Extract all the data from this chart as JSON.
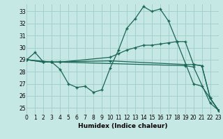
{
  "xlabel": "Humidex (Indice chaleur)",
  "xlim": [
    0,
    23
  ],
  "ylim": [
    24.5,
    33.6
  ],
  "yticks": [
    25,
    26,
    27,
    28,
    29,
    30,
    31,
    32,
    33
  ],
  "xticks": [
    0,
    1,
    2,
    3,
    4,
    5,
    6,
    7,
    8,
    9,
    10,
    11,
    12,
    13,
    14,
    15,
    16,
    17,
    18,
    19,
    20,
    21,
    22,
    23
  ],
  "bg_color": "#c5e8e5",
  "grid_color": "#a0ccca",
  "line_color": "#1a6655",
  "lines": [
    {
      "x": [
        0,
        1,
        2,
        3,
        4,
        5,
        6,
        7,
        8,
        9,
        10,
        11,
        12,
        13,
        14,
        15,
        16,
        17,
        18,
        20,
        21,
        22,
        23
      ],
      "y": [
        29.0,
        29.6,
        28.8,
        28.8,
        28.2,
        27.0,
        26.7,
        26.8,
        26.3,
        26.5,
        28.3,
        29.8,
        31.6,
        32.4,
        33.4,
        33.0,
        33.2,
        32.2,
        30.5,
        27.0,
        26.8,
        25.8,
        24.8
      ]
    },
    {
      "x": [
        0,
        2,
        3,
        4,
        10,
        11,
        12,
        13,
        14,
        15,
        16,
        17,
        18,
        19,
        20,
        21,
        22,
        23
      ],
      "y": [
        29.0,
        28.8,
        28.8,
        28.8,
        29.2,
        29.5,
        29.8,
        30.0,
        30.2,
        30.2,
        30.3,
        30.4,
        30.5,
        30.5,
        28.6,
        28.5,
        25.8,
        24.8
      ]
    },
    {
      "x": [
        0,
        2,
        3,
        10,
        19,
        20,
        21,
        22,
        23
      ],
      "y": [
        29.0,
        28.8,
        28.8,
        28.9,
        28.6,
        28.6,
        28.5,
        25.8,
        24.8
      ]
    },
    {
      "x": [
        0,
        3,
        4,
        19,
        20,
        22,
        23
      ],
      "y": [
        29.0,
        28.8,
        28.8,
        28.5,
        28.4,
        25.4,
        24.8
      ]
    }
  ]
}
